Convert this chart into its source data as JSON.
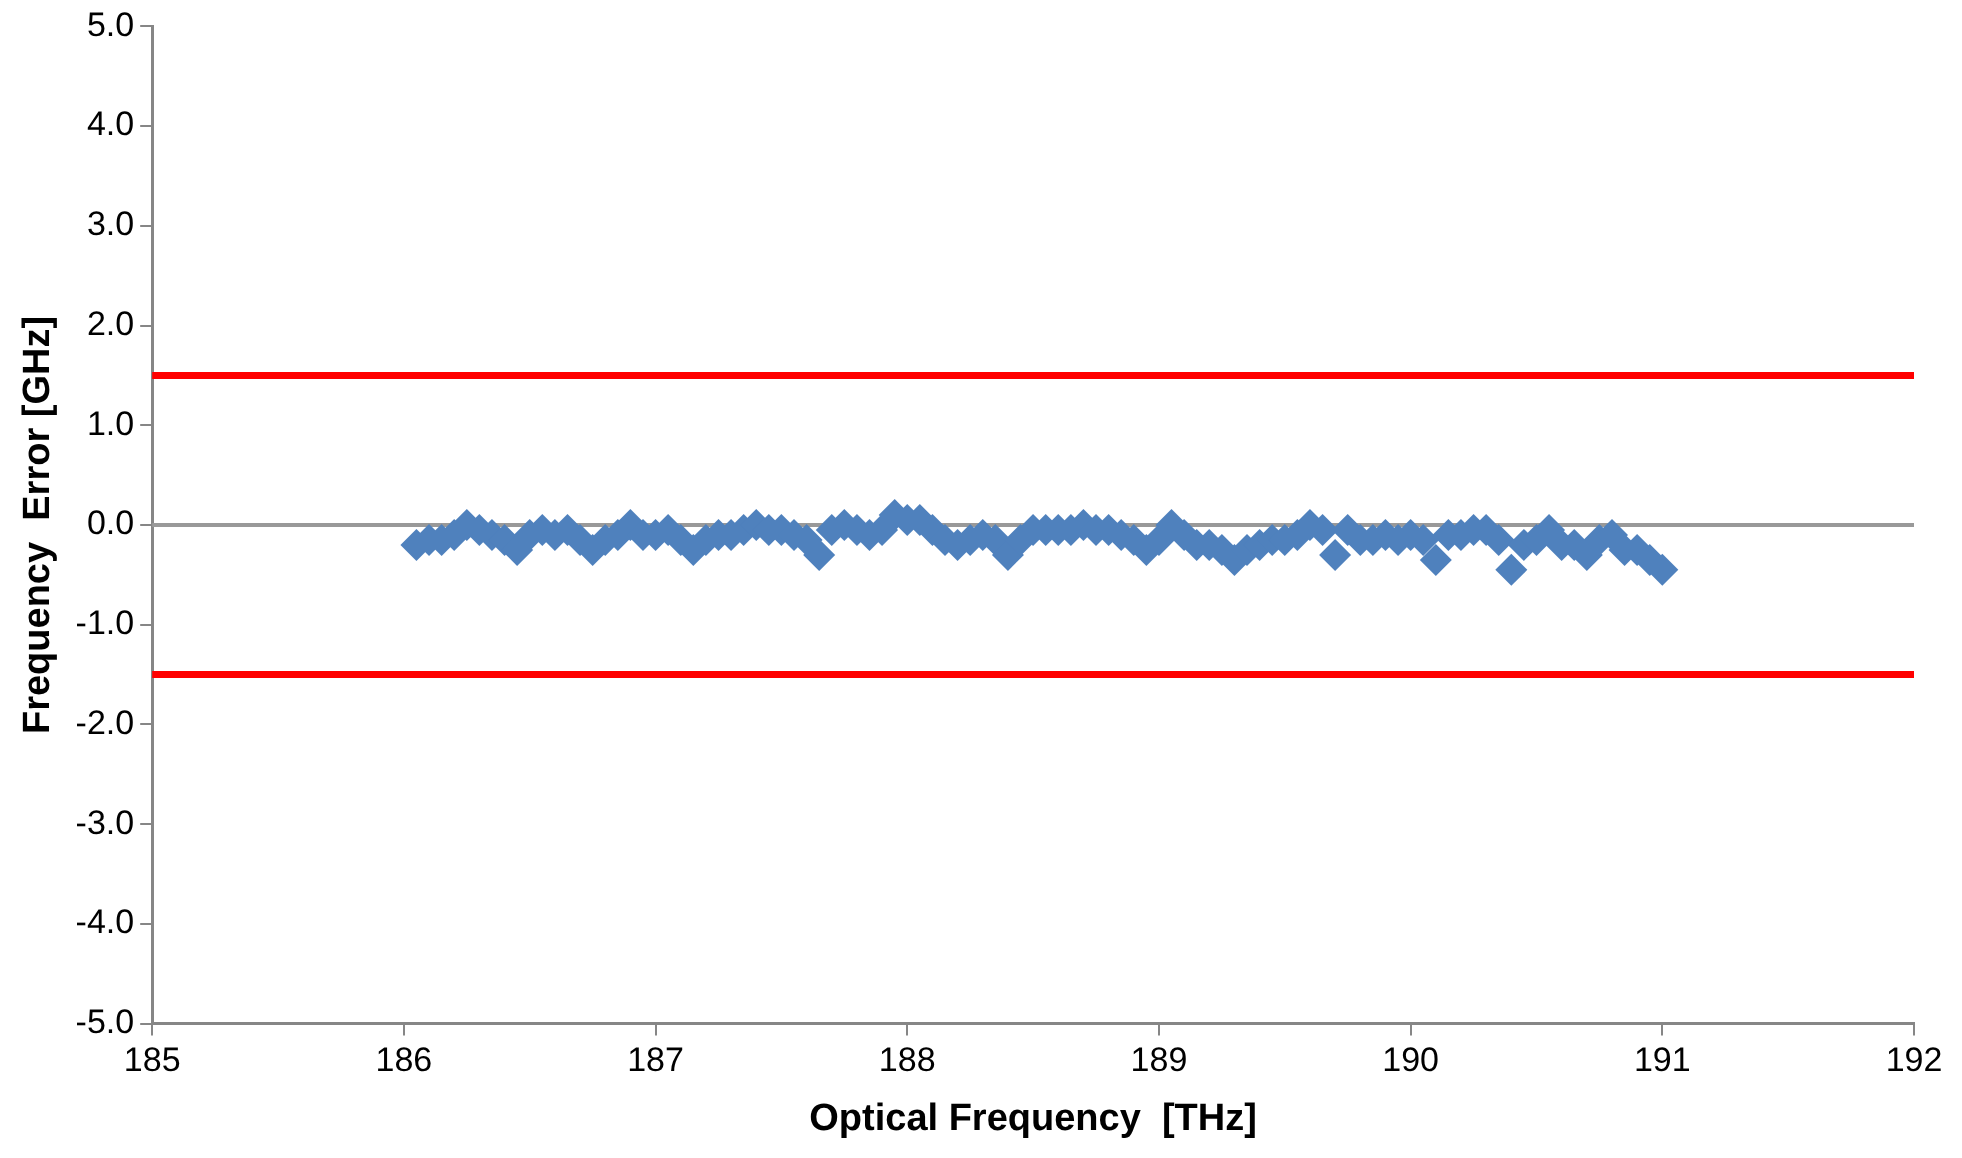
{
  "chart_data": {
    "type": "scatter",
    "xlabel": "Optical Frequency  [THz]",
    "ylabel": "Frequency  Error [GHz]",
    "x": [
      186.05,
      186.1,
      186.15,
      186.2,
      186.25,
      186.3,
      186.35,
      186.4,
      186.45,
      186.5,
      186.55,
      186.6,
      186.65,
      186.7,
      186.75,
      186.8,
      186.85,
      186.9,
      186.95,
      187.0,
      187.05,
      187.1,
      187.15,
      187.2,
      187.25,
      187.3,
      187.35,
      187.4,
      187.45,
      187.5,
      187.55,
      187.6,
      187.65,
      187.7,
      187.75,
      187.8,
      187.85,
      187.9,
      187.95,
      188.0,
      188.05,
      188.1,
      188.15,
      188.2,
      188.25,
      188.3,
      188.35,
      188.4,
      188.45,
      188.5,
      188.55,
      188.6,
      188.65,
      188.7,
      188.75,
      188.8,
      188.85,
      188.9,
      188.95,
      189.0,
      189.05,
      189.1,
      189.15,
      189.2,
      189.25,
      189.3,
      189.35,
      189.4,
      189.45,
      189.5,
      189.55,
      189.6,
      189.65,
      189.7,
      189.75,
      189.8,
      189.85,
      189.9,
      189.95,
      190.0,
      190.05,
      190.1,
      190.15,
      190.2,
      190.25,
      190.3,
      190.35,
      190.4,
      190.45,
      190.5,
      190.55,
      190.6,
      190.65,
      190.7,
      190.75,
      190.8,
      190.85,
      190.9,
      190.95,
      191.0
    ],
    "series": [
      {
        "color": "#4f81bd",
        "values": [
          -0.2,
          -0.15,
          -0.15,
          -0.1,
          0.0,
          -0.05,
          -0.1,
          -0.15,
          -0.25,
          -0.1,
          -0.05,
          -0.1,
          -0.05,
          -0.15,
          -0.25,
          -0.15,
          -0.1,
          0.0,
          -0.1,
          -0.1,
          -0.05,
          -0.15,
          -0.25,
          -0.15,
          -0.1,
          -0.1,
          -0.05,
          0.0,
          -0.05,
          -0.05,
          -0.1,
          -0.15,
          -0.3,
          -0.05,
          0.0,
          -0.05,
          -0.1,
          -0.05,
          0.1,
          0.05,
          0.05,
          -0.05,
          -0.15,
          -0.2,
          -0.15,
          -0.1,
          -0.15,
          -0.3,
          -0.15,
          -0.05,
          -0.05,
          -0.05,
          -0.05,
          0.0,
          -0.05,
          -0.05,
          -0.1,
          -0.15,
          -0.25,
          -0.15,
          0.0,
          -0.1,
          -0.2,
          -0.2,
          -0.25,
          -0.35,
          -0.25,
          -0.2,
          -0.15,
          -0.15,
          -0.1,
          0.0,
          -0.05,
          -0.3,
          -0.05,
          -0.15,
          -0.15,
          -0.1,
          -0.15,
          -0.1,
          -0.15,
          -0.35,
          -0.1,
          -0.1,
          -0.05,
          -0.05,
          -0.15,
          -0.45,
          -0.2,
          -0.15,
          -0.05,
          -0.2,
          -0.2,
          -0.3,
          -0.15,
          -0.1,
          -0.25,
          -0.25,
          -0.35,
          -0.45
        ]
      }
    ],
    "xlim": [
      185,
      192
    ],
    "xticks": [
      185,
      186,
      187,
      188,
      189,
      190,
      191,
      192
    ],
    "ylim": [
      -5,
      5
    ],
    "yticks": [
      {
        "value": -5,
        "label": "-5.0"
      },
      {
        "value": -4,
        "label": "-4.0"
      },
      {
        "value": -3,
        "label": "-3.0"
      },
      {
        "value": -2,
        "label": "-2.0"
      },
      {
        "value": -1,
        "label": "-1.0"
      },
      {
        "value": 0,
        "label": "0.0"
      },
      {
        "value": 1,
        "label": "1.0"
      },
      {
        "value": 2,
        "label": "2.0"
      },
      {
        "value": 3,
        "label": "3.0"
      },
      {
        "value": 4,
        "label": "4.0"
      },
      {
        "value": 5,
        "label": "5.0"
      }
    ],
    "ref_lines": [
      {
        "axis": "y",
        "value": 1.5,
        "color": "#ff0000"
      },
      {
        "axis": "y",
        "value": -1.5,
        "color": "#ff0000"
      },
      {
        "axis": "y",
        "value": 0,
        "color": "#999999"
      }
    ],
    "grid": false,
    "legend": false,
    "marker": "diamond"
  }
}
